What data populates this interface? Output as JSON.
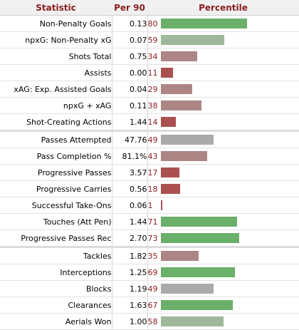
{
  "header": {
    "statistic": "Statistic",
    "per90": "Per 90",
    "percentile": "Percentile"
  },
  "colors": {
    "green": "#6aaf6a",
    "gray_green": "#9fb79a",
    "gray": "#aaaaaa",
    "mauve": "#ad8585",
    "red": "#ab5050"
  },
  "rows": [
    {
      "label": "Non-Penalty Goals",
      "per90": "0.13",
      "percentile": 80,
      "color": "#6aaf6a"
    },
    {
      "label": "npxG: Non-Penalty xG",
      "per90": "0.07",
      "percentile": 59,
      "color": "#9fb79a"
    },
    {
      "label": "Shots Total",
      "per90": "0.75",
      "percentile": 34,
      "color": "#ad8585"
    },
    {
      "label": "Assists",
      "per90": "0.00",
      "percentile": 11,
      "color": "#ab5050"
    },
    {
      "label": "xAG: Exp. Assisted Goals",
      "per90": "0.04",
      "percentile": 29,
      "color": "#ad8585"
    },
    {
      "label": "npxG + xAG",
      "per90": "0.11",
      "percentile": 38,
      "color": "#ad8585"
    },
    {
      "label": "Shot-Creating Actions",
      "per90": "1.44",
      "percentile": 14,
      "color": "#ab5050"
    },
    {
      "label": "Passes Attempted",
      "per90": "47.76",
      "percentile": 49,
      "color": "#aaaaaa",
      "group_start": true
    },
    {
      "label": "Pass Completion %",
      "per90": "81.1%",
      "percentile": 43,
      "color": "#ad8585"
    },
    {
      "label": "Progressive Passes",
      "per90": "3.57",
      "percentile": 17,
      "color": "#ab5050"
    },
    {
      "label": "Progressive Carries",
      "per90": "0.56",
      "percentile": 18,
      "color": "#ab5050"
    },
    {
      "label": "Successful Take-Ons",
      "per90": "0.06",
      "percentile": 1,
      "color": "#ab5050"
    },
    {
      "label": "Touches (Att Pen)",
      "per90": "1.44",
      "percentile": 71,
      "color": "#6aaf6a"
    },
    {
      "label": "Progressive Passes Rec",
      "per90": "2.70",
      "percentile": 73,
      "color": "#6aaf6a"
    },
    {
      "label": "Tackles",
      "per90": "1.82",
      "percentile": 35,
      "color": "#ad8585",
      "group_start": true
    },
    {
      "label": "Interceptions",
      "per90": "1.25",
      "percentile": 69,
      "color": "#6aaf6a"
    },
    {
      "label": "Blocks",
      "per90": "1.19",
      "percentile": 49,
      "color": "#aaaaaa"
    },
    {
      "label": "Clearances",
      "per90": "1.63",
      "percentile": 67,
      "color": "#6aaf6a"
    },
    {
      "label": "Aerials Won",
      "per90": "1.00",
      "percentile": 58,
      "color": "#9fb79a"
    }
  ]
}
